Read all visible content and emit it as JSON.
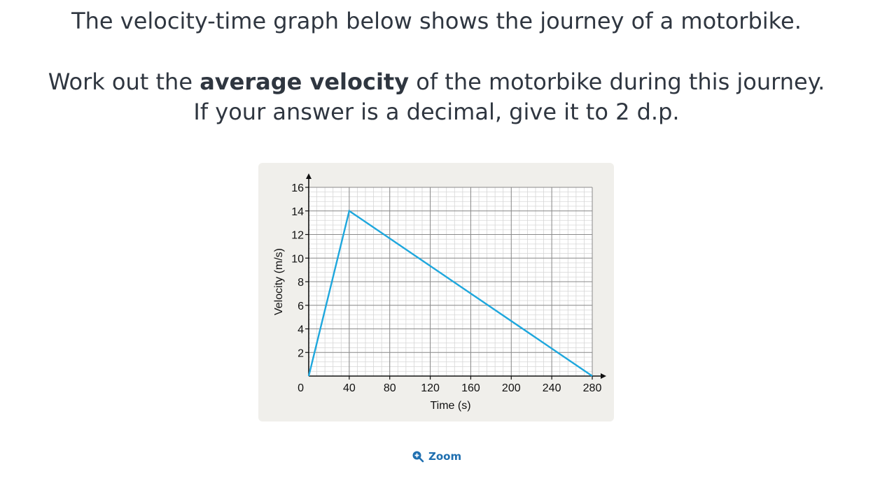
{
  "question": {
    "line1": "The velocity-time graph below shows the journey of a motorbike.",
    "line2_pre": "Work out the ",
    "line2_bold": "average velocity",
    "line2_post": " of the motorbike during this journey.",
    "line3": "If your answer is a decimal, give it to 2 d.p."
  },
  "zoom": {
    "label": "Zoom",
    "icon": "zoom-in-icon"
  },
  "chart_data": {
    "type": "line",
    "xlabel": "Time (s)",
    "ylabel": "Velocity (m/s)",
    "xlim": [
      0,
      280
    ],
    "ylim": [
      0,
      16
    ],
    "x_ticks": [
      40,
      80,
      120,
      160,
      200,
      240,
      280
    ],
    "y_ticks": [
      2,
      4,
      6,
      8,
      10,
      12,
      14,
      16
    ],
    "origin_label": "0",
    "grid": true,
    "series": [
      {
        "color": "#1ea7dd",
        "x": [
          0,
          40,
          280
        ],
        "y": [
          0,
          14,
          0
        ]
      }
    ]
  }
}
